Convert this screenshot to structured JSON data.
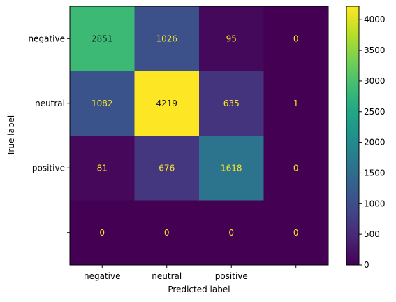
{
  "chart_data": {
    "type": "heatmap",
    "title": "",
    "xlabel": "Predicted label",
    "ylabel": "True label",
    "x_categories": [
      "negative",
      "neutral",
      "positive",
      ""
    ],
    "y_categories": [
      "negative",
      "neutral",
      "positive",
      ""
    ],
    "values": [
      [
        2851,
        1026,
        95,
        0
      ],
      [
        1082,
        4219,
        635,
        1
      ],
      [
        81,
        676,
        1618,
        0
      ],
      [
        0,
        0,
        0,
        0
      ]
    ],
    "colormap": "viridis",
    "colorbar": {
      "range": [
        0,
        4219
      ],
      "ticks": [
        0,
        500,
        1000,
        1500,
        2000,
        2500,
        3000,
        3500,
        4000
      ]
    },
    "grid": false,
    "text_colors": {
      "dark_cell": "#fde725",
      "bright_cell": "#1a1a1a"
    }
  }
}
